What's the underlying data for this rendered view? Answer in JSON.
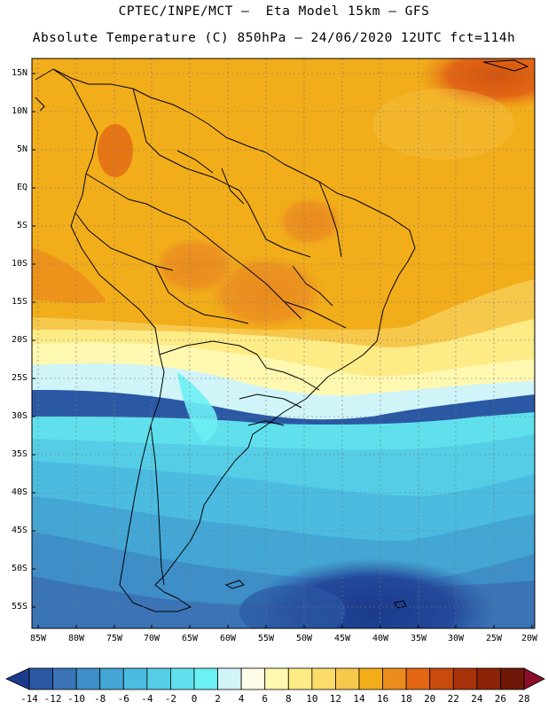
{
  "header": {
    "line1": "CPTEC/INPE/MCT –  Eta Model 15km – GFS",
    "line2": "Absolute Temperature (C) 850hPa – 24/06/2020 12UTC fct=114h"
  },
  "map": {
    "lon_range": [
      -86,
      -20
    ],
    "lat_range": [
      -58,
      17
    ],
    "y_ticks": [
      "15N",
      "10N",
      "5N",
      "EQ",
      "5S",
      "10S",
      "15S",
      "20S",
      "25S",
      "30S",
      "35S",
      "40S",
      "45S",
      "50S",
      "55S"
    ],
    "x_ticks": [
      "85W",
      "80W",
      "75W",
      "70W",
      "65W",
      "60W",
      "55W",
      "50W",
      "45W",
      "40W",
      "35W",
      "30W",
      "25W",
      "20W"
    ],
    "grid": true
  },
  "colorbar": {
    "labels": [
      "-14",
      "-12",
      "-10",
      "-8",
      "-6",
      "-4",
      "-2",
      "0",
      "2",
      "4",
      "6",
      "8",
      "10",
      "12",
      "14",
      "16",
      "18",
      "20",
      "22",
      "24",
      "26",
      "28"
    ],
    "colors": [
      "#1b3a8c",
      "#2b58a4",
      "#3a74b6",
      "#3e8ec8",
      "#43a6d4",
      "#4bbbe0",
      "#55cde6",
      "#5fe0ec",
      "#6bf0f4",
      "#d0f4f8",
      "#fffbe6",
      "#fff8b0",
      "#fdeb86",
      "#fbdc6a",
      "#f6c84c",
      "#f2ad1a",
      "#eb8c1c",
      "#e26614",
      "#c84a0c",
      "#a8320a",
      "#8c2408",
      "#701808",
      "#8a0e2a"
    ],
    "colors_note": "first = below-range arrow, last = above-range arrow"
  }
}
